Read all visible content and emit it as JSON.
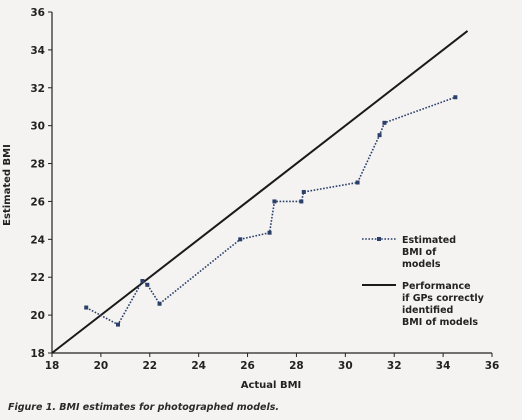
{
  "caption": "Figure 1. BMI estimates for photographed models.",
  "chart_data": {
    "type": "line",
    "xlabel": "Actual BMI",
    "ylabel": "Estimated BMI",
    "xlim": [
      18,
      36
    ],
    "ylim": [
      18,
      36
    ],
    "xticks": [
      18,
      20,
      22,
      24,
      26,
      28,
      30,
      32,
      34,
      36
    ],
    "yticks": [
      18,
      20,
      22,
      24,
      26,
      28,
      30,
      32,
      34,
      36
    ],
    "grid": false,
    "legend_position": "right",
    "series": [
      {
        "name": "Estimated BMI of models",
        "style": "dotted-with-markers",
        "color": "#2a3f6a",
        "x": [
          19.4,
          20.7,
          21.7,
          21.9,
          22.4,
          25.7,
          26.9,
          27.1,
          28.2,
          28.3,
          30.5,
          31.4,
          31.6,
          34.5
        ],
        "y": [
          20.4,
          19.5,
          21.8,
          21.6,
          20.6,
          24.0,
          24.35,
          26.0,
          26.0,
          26.5,
          27.0,
          29.5,
          30.15,
          31.5
        ]
      },
      {
        "name": "Performance if GPs correctly identified BMI of models",
        "style": "solid",
        "color": "#1a1a1a",
        "x": [
          18,
          35
        ],
        "y": [
          18,
          35
        ]
      }
    ],
    "legend": [
      [
        "Estimated",
        "BMI of",
        "models"
      ],
      [
        "Performance",
        "if GPs correctly",
        "identified",
        "BMI of models"
      ]
    ]
  }
}
